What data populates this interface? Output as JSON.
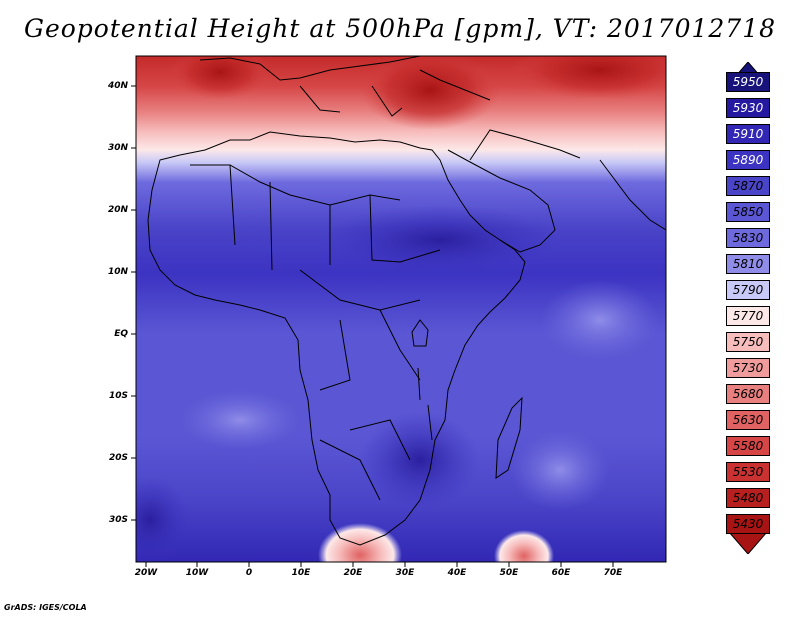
{
  "title": "Geopotential Height at 500hPa [gpm], VT: 2017012718",
  "map": {
    "lat_labels": [
      "40N",
      "30N",
      "20N",
      "10N",
      "EQ",
      "10S",
      "20S",
      "30S"
    ],
    "lon_labels": [
      "20W",
      "10W",
      "0",
      "10E",
      "20E",
      "30E",
      "40E",
      "50E",
      "60E",
      "70E"
    ]
  },
  "colorbar": {
    "levels": [
      "5950",
      "5930",
      "5910",
      "5890",
      "5870",
      "5850",
      "5830",
      "5810",
      "5790",
      "5770",
      "5750",
      "5730",
      "5680",
      "5630",
      "5580",
      "5530",
      "5480",
      "5430"
    ],
    "colors": [
      "#17137a",
      "#2419a0",
      "#3127b4",
      "#3c33c2",
      "#4a44c8",
      "#5b57d4",
      "#6e6ade",
      "#8f8de8",
      "#c9c9f7",
      "#fde8e8",
      "#f7bcbc",
      "#f09c9c",
      "#e88080",
      "#e06262",
      "#d64646",
      "#ca3232",
      "#b81f1f",
      "#a81414"
    ]
  },
  "credit": "GrADS: IGES/COLA"
}
